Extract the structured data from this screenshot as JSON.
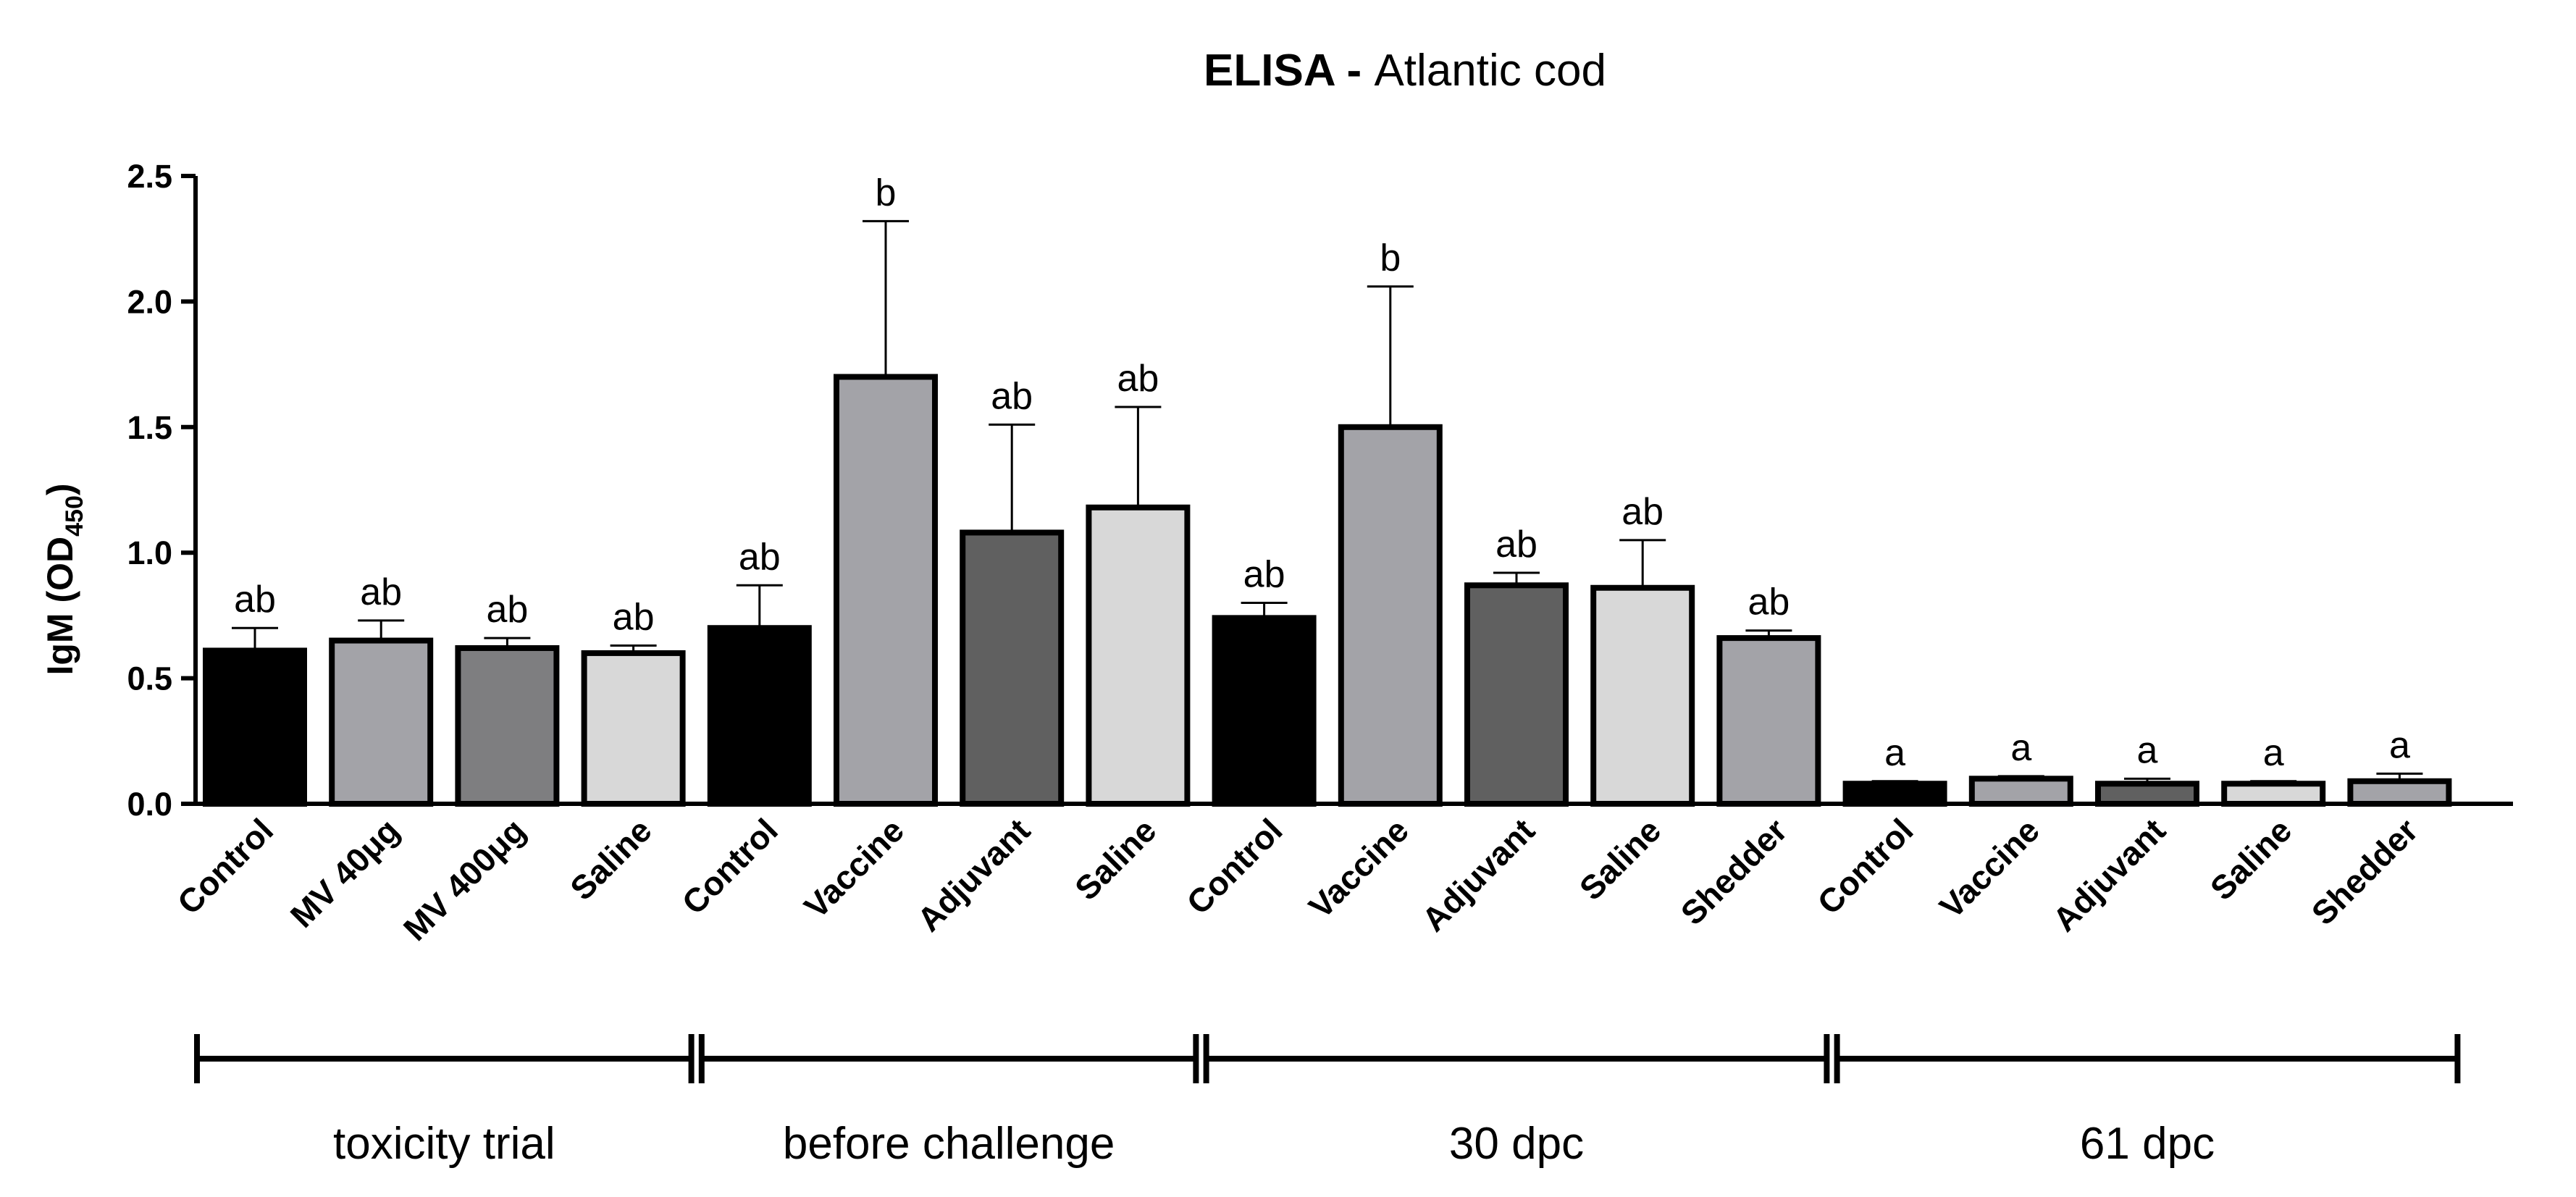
{
  "chart_data": {
    "type": "bar",
    "title_bold": "ELISA",
    "title_sep": " - ",
    "title_rest": "Atlantic cod",
    "ylabel": "IgM (OD",
    "ylabel_sub": "450",
    "ylabel_close": ")",
    "ylim": [
      0,
      2.5
    ],
    "yticks": [
      "0.0",
      "0.5",
      "1.0",
      "1.5",
      "2.0",
      "2.5"
    ],
    "ytick_values": [
      0,
      0.5,
      1.0,
      1.5,
      2.0,
      2.5
    ],
    "bars": [
      {
        "label": "Control",
        "value": 0.61,
        "error": 0.09,
        "sig": "ab",
        "color": "#000000"
      },
      {
        "label": "MV 40μg",
        "value": 0.65,
        "error": 0.08,
        "sig": "ab",
        "color": "#a3a3a8"
      },
      {
        "label": "MV 400μg",
        "value": 0.62,
        "error": 0.04,
        "sig": "ab",
        "color": "#7e7e80"
      },
      {
        "label": "Saline",
        "value": 0.6,
        "error": 0.03,
        "sig": "ab",
        "color": "#d8d8d8"
      },
      {
        "label": "Control",
        "value": 0.7,
        "error": 0.17,
        "sig": "ab",
        "color": "#000000"
      },
      {
        "label": "Vaccine",
        "value": 1.7,
        "error": 0.62,
        "sig": "b",
        "color": "#a3a3a8"
      },
      {
        "label": "Adjuvant",
        "value": 1.08,
        "error": 0.43,
        "sig": "ab",
        "color": "#606060"
      },
      {
        "label": "Saline",
        "value": 1.18,
        "error": 0.4,
        "sig": "ab",
        "color": "#d8d8d8"
      },
      {
        "label": "Control",
        "value": 0.74,
        "error": 0.06,
        "sig": "ab",
        "color": "#000000"
      },
      {
        "label": "Vaccine",
        "value": 1.5,
        "error": 0.56,
        "sig": "b",
        "color": "#a3a3a8"
      },
      {
        "label": "Adjuvant",
        "value": 0.87,
        "error": 0.05,
        "sig": "ab",
        "color": "#606060"
      },
      {
        "label": "Saline",
        "value": 0.86,
        "error": 0.19,
        "sig": "ab",
        "color": "#d8d8d8"
      },
      {
        "label": "Shedder",
        "value": 0.66,
        "error": 0.03,
        "sig": "ab",
        "color": "#a3a3a8"
      },
      {
        "label": "Control",
        "value": 0.08,
        "error": 0.01,
        "sig": "a",
        "color": "#000000"
      },
      {
        "label": "Vaccine",
        "value": 0.1,
        "error": 0.01,
        "sig": "a",
        "color": "#a3a3a8"
      },
      {
        "label": "Adjuvant",
        "value": 0.08,
        "error": 0.02,
        "sig": "a",
        "color": "#606060"
      },
      {
        "label": "Saline",
        "value": 0.08,
        "error": 0.01,
        "sig": "a",
        "color": "#d8d8d8"
      },
      {
        "label": "Shedder",
        "value": 0.09,
        "error": 0.03,
        "sig": "a",
        "color": "#a3a3a8"
      }
    ],
    "groups": [
      {
        "label": "toxicity trial",
        "start": 0,
        "end": 3
      },
      {
        "label": "before challenge",
        "start": 4,
        "end": 7
      },
      {
        "label": "30 dpc",
        "start": 8,
        "end": 12
      },
      {
        "label": "61 dpc",
        "start": 13,
        "end": 17
      }
    ]
  }
}
